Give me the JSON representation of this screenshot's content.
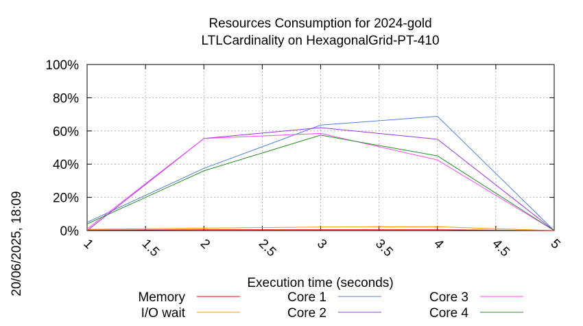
{
  "chart_data": {
    "type": "line",
    "title_line1": "Resources Consumption for 2024-gold",
    "title_line2": "LTLCardinality on HexagonalGrid-PT-410",
    "xlabel": "Execution time (seconds)",
    "ylabel": "",
    "side_label": "20/06/2025, 18:09",
    "xlim": [
      1,
      5
    ],
    "ylim": [
      0,
      100
    ],
    "grid": true,
    "legend_position": "bottom",
    "x_ticks": [
      "1",
      "1.5",
      "2",
      "2.5",
      "3",
      "3.5",
      "4",
      "4.5",
      "5"
    ],
    "y_ticks": [
      "0%",
      "20%",
      "40%",
      "60%",
      "80%",
      "100%"
    ],
    "x": [
      1,
      2,
      3,
      4,
      5
    ],
    "series": [
      {
        "name": "Memory",
        "color": "#ff0000",
        "values": [
          0.3,
          0.5,
          0.5,
          0.5,
          0
        ]
      },
      {
        "name": "I/O wait",
        "color": "#ff9900",
        "values": [
          0.8,
          1.5,
          2.2,
          2.3,
          0
        ]
      },
      {
        "name": "Core 1",
        "color": "#4f7fe0",
        "values": [
          5,
          37.5,
          63.5,
          68.8,
          0
        ]
      },
      {
        "name": "Core 2",
        "color": "#9933dd",
        "values": [
          0,
          55.5,
          62,
          55,
          0
        ]
      },
      {
        "name": "Core 3",
        "color": "#ff44ff",
        "values": [
          1,
          55.5,
          58.5,
          42.5,
          0
        ]
      },
      {
        "name": "Core 4",
        "color": "#228b22",
        "values": [
          4,
          36,
          57.5,
          45,
          0
        ]
      }
    ]
  }
}
